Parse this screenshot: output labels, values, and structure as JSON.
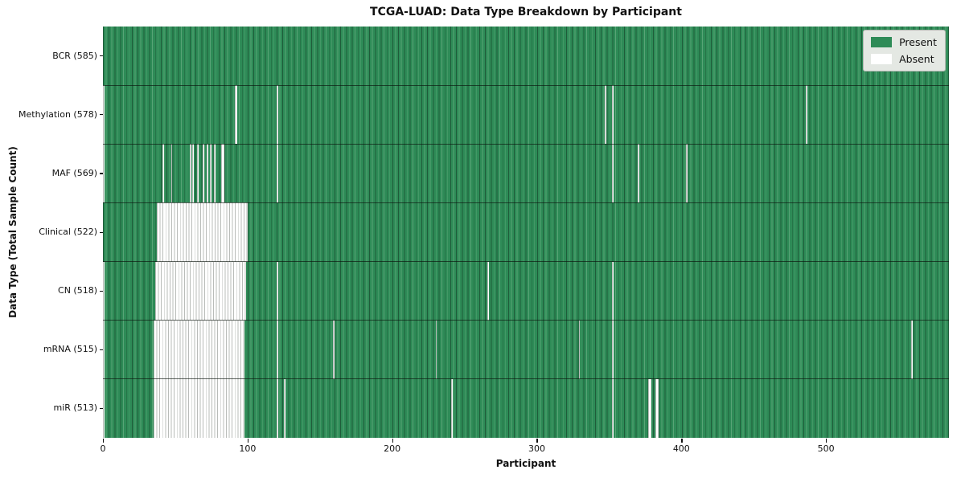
{
  "title": "TCGA-LUAD: Data Type Breakdown by Participant",
  "axes": {
    "xlabel": "Participant",
    "ylabel": "Data Type (Total Sample Count)"
  },
  "legend": {
    "position": "upper right",
    "items": [
      {
        "label": "Present",
        "color_key": "present"
      },
      {
        "label": "Absent",
        "color_key": "absent"
      }
    ]
  },
  "colors": {
    "present": "#2e8b57",
    "present_stripe_dark": "#1f5c3a",
    "present_stripe_light": "#58a476",
    "absent": "#ffffff",
    "absent_stripe": "#b9bcb9",
    "separator": "rgba(10,20,12,0.65)",
    "axis": "#111111",
    "legend_bg": "#e4e8e3"
  },
  "chart_data": {
    "type": "heatmap",
    "title": "TCGA-LUAD: Data Type Breakdown by Participant",
    "xlabel": "Participant",
    "ylabel": "Data Type (Total Sample Count)",
    "x_ticks": [
      0,
      100,
      200,
      300,
      400,
      500
    ],
    "x_range": [
      0,
      585
    ],
    "n_participants": 585,
    "grid": false,
    "legend_entries": [
      "Present",
      "Absent"
    ],
    "legend_position": "upper right",
    "rows": [
      {
        "label": "BCR (585)",
        "data_type": "BCR",
        "total_samples": 585,
        "absent_ranges": []
      },
      {
        "label": "Methylation (578)",
        "data_type": "Methylation",
        "total_samples": 578,
        "absent_ranges": [
          [
            0,
            0
          ],
          [
            91,
            92
          ],
          [
            120,
            120
          ],
          [
            347,
            347
          ],
          [
            352,
            352
          ],
          [
            486,
            486
          ]
        ]
      },
      {
        "label": "MAF (569)",
        "data_type": "MAF",
        "total_samples": 569,
        "absent_ranges": [
          [
            0,
            0
          ],
          [
            41,
            41
          ],
          [
            47,
            47
          ],
          [
            60,
            60
          ],
          [
            62,
            62
          ],
          [
            65,
            65
          ],
          [
            69,
            69
          ],
          [
            72,
            72
          ],
          [
            74,
            74
          ],
          [
            77,
            77
          ],
          [
            82,
            83
          ],
          [
            120,
            120
          ],
          [
            352,
            352
          ],
          [
            370,
            370
          ],
          [
            403,
            403
          ]
        ]
      },
      {
        "label": "Clinical (522)",
        "data_type": "Clinical",
        "total_samples": 522,
        "absent_ranges": [
          [
            37,
            99
          ]
        ]
      },
      {
        "label": "CN (518)",
        "data_type": "CN",
        "total_samples": 518,
        "absent_ranges": [
          [
            0,
            0
          ],
          [
            36,
            98
          ],
          [
            120,
            120
          ],
          [
            266,
            266
          ],
          [
            352,
            352
          ]
        ]
      },
      {
        "label": "mRNA (515)",
        "data_type": "mRNA",
        "total_samples": 515,
        "absent_ranges": [
          [
            0,
            0
          ],
          [
            35,
            97
          ],
          [
            120,
            120
          ],
          [
            159,
            159
          ],
          [
            230,
            230
          ],
          [
            329,
            329
          ],
          [
            352,
            352
          ],
          [
            559,
            559
          ]
        ]
      },
      {
        "label": "miR (513)",
        "data_type": "miR",
        "total_samples": 513,
        "absent_ranges": [
          [
            0,
            0
          ],
          [
            35,
            97
          ],
          [
            120,
            120
          ],
          [
            125,
            125
          ],
          [
            241,
            241
          ],
          [
            352,
            352
          ],
          [
            377,
            378
          ],
          [
            382,
            383
          ]
        ]
      }
    ]
  }
}
